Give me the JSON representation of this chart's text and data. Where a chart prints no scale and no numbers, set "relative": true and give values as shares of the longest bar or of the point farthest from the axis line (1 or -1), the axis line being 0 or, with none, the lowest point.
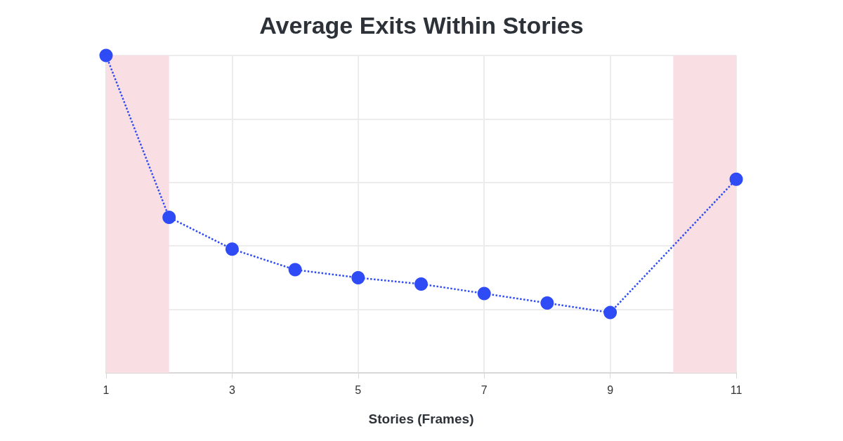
{
  "chart_data": {
    "type": "line",
    "title": "Average Exits Within Stories",
    "xlabel": "Stories (Frames)",
    "relative": true,
    "x": [
      1,
      2,
      3,
      4,
      5,
      6,
      7,
      8,
      9,
      11
    ],
    "series": [
      {
        "color": "#2e4bf5",
        "values": [
          1,
          0.49,
          0.39,
          0.325,
          0.3,
          0.28,
          0.25,
          0.22,
          0.19,
          0.61
        ]
      }
    ],
    "xlim": [
      1,
      11
    ],
    "xticks": [
      1,
      3,
      5,
      7,
      9,
      11
    ],
    "bands": [
      {
        "axis": "x",
        "from": 1,
        "to": 2,
        "color": "#f9dfe3"
      },
      {
        "axis": "x",
        "from": 10,
        "to": 11,
        "color": "#f9dfe3"
      }
    ],
    "grid": true,
    "marker": "circle",
    "line_style": "dotted"
  }
}
